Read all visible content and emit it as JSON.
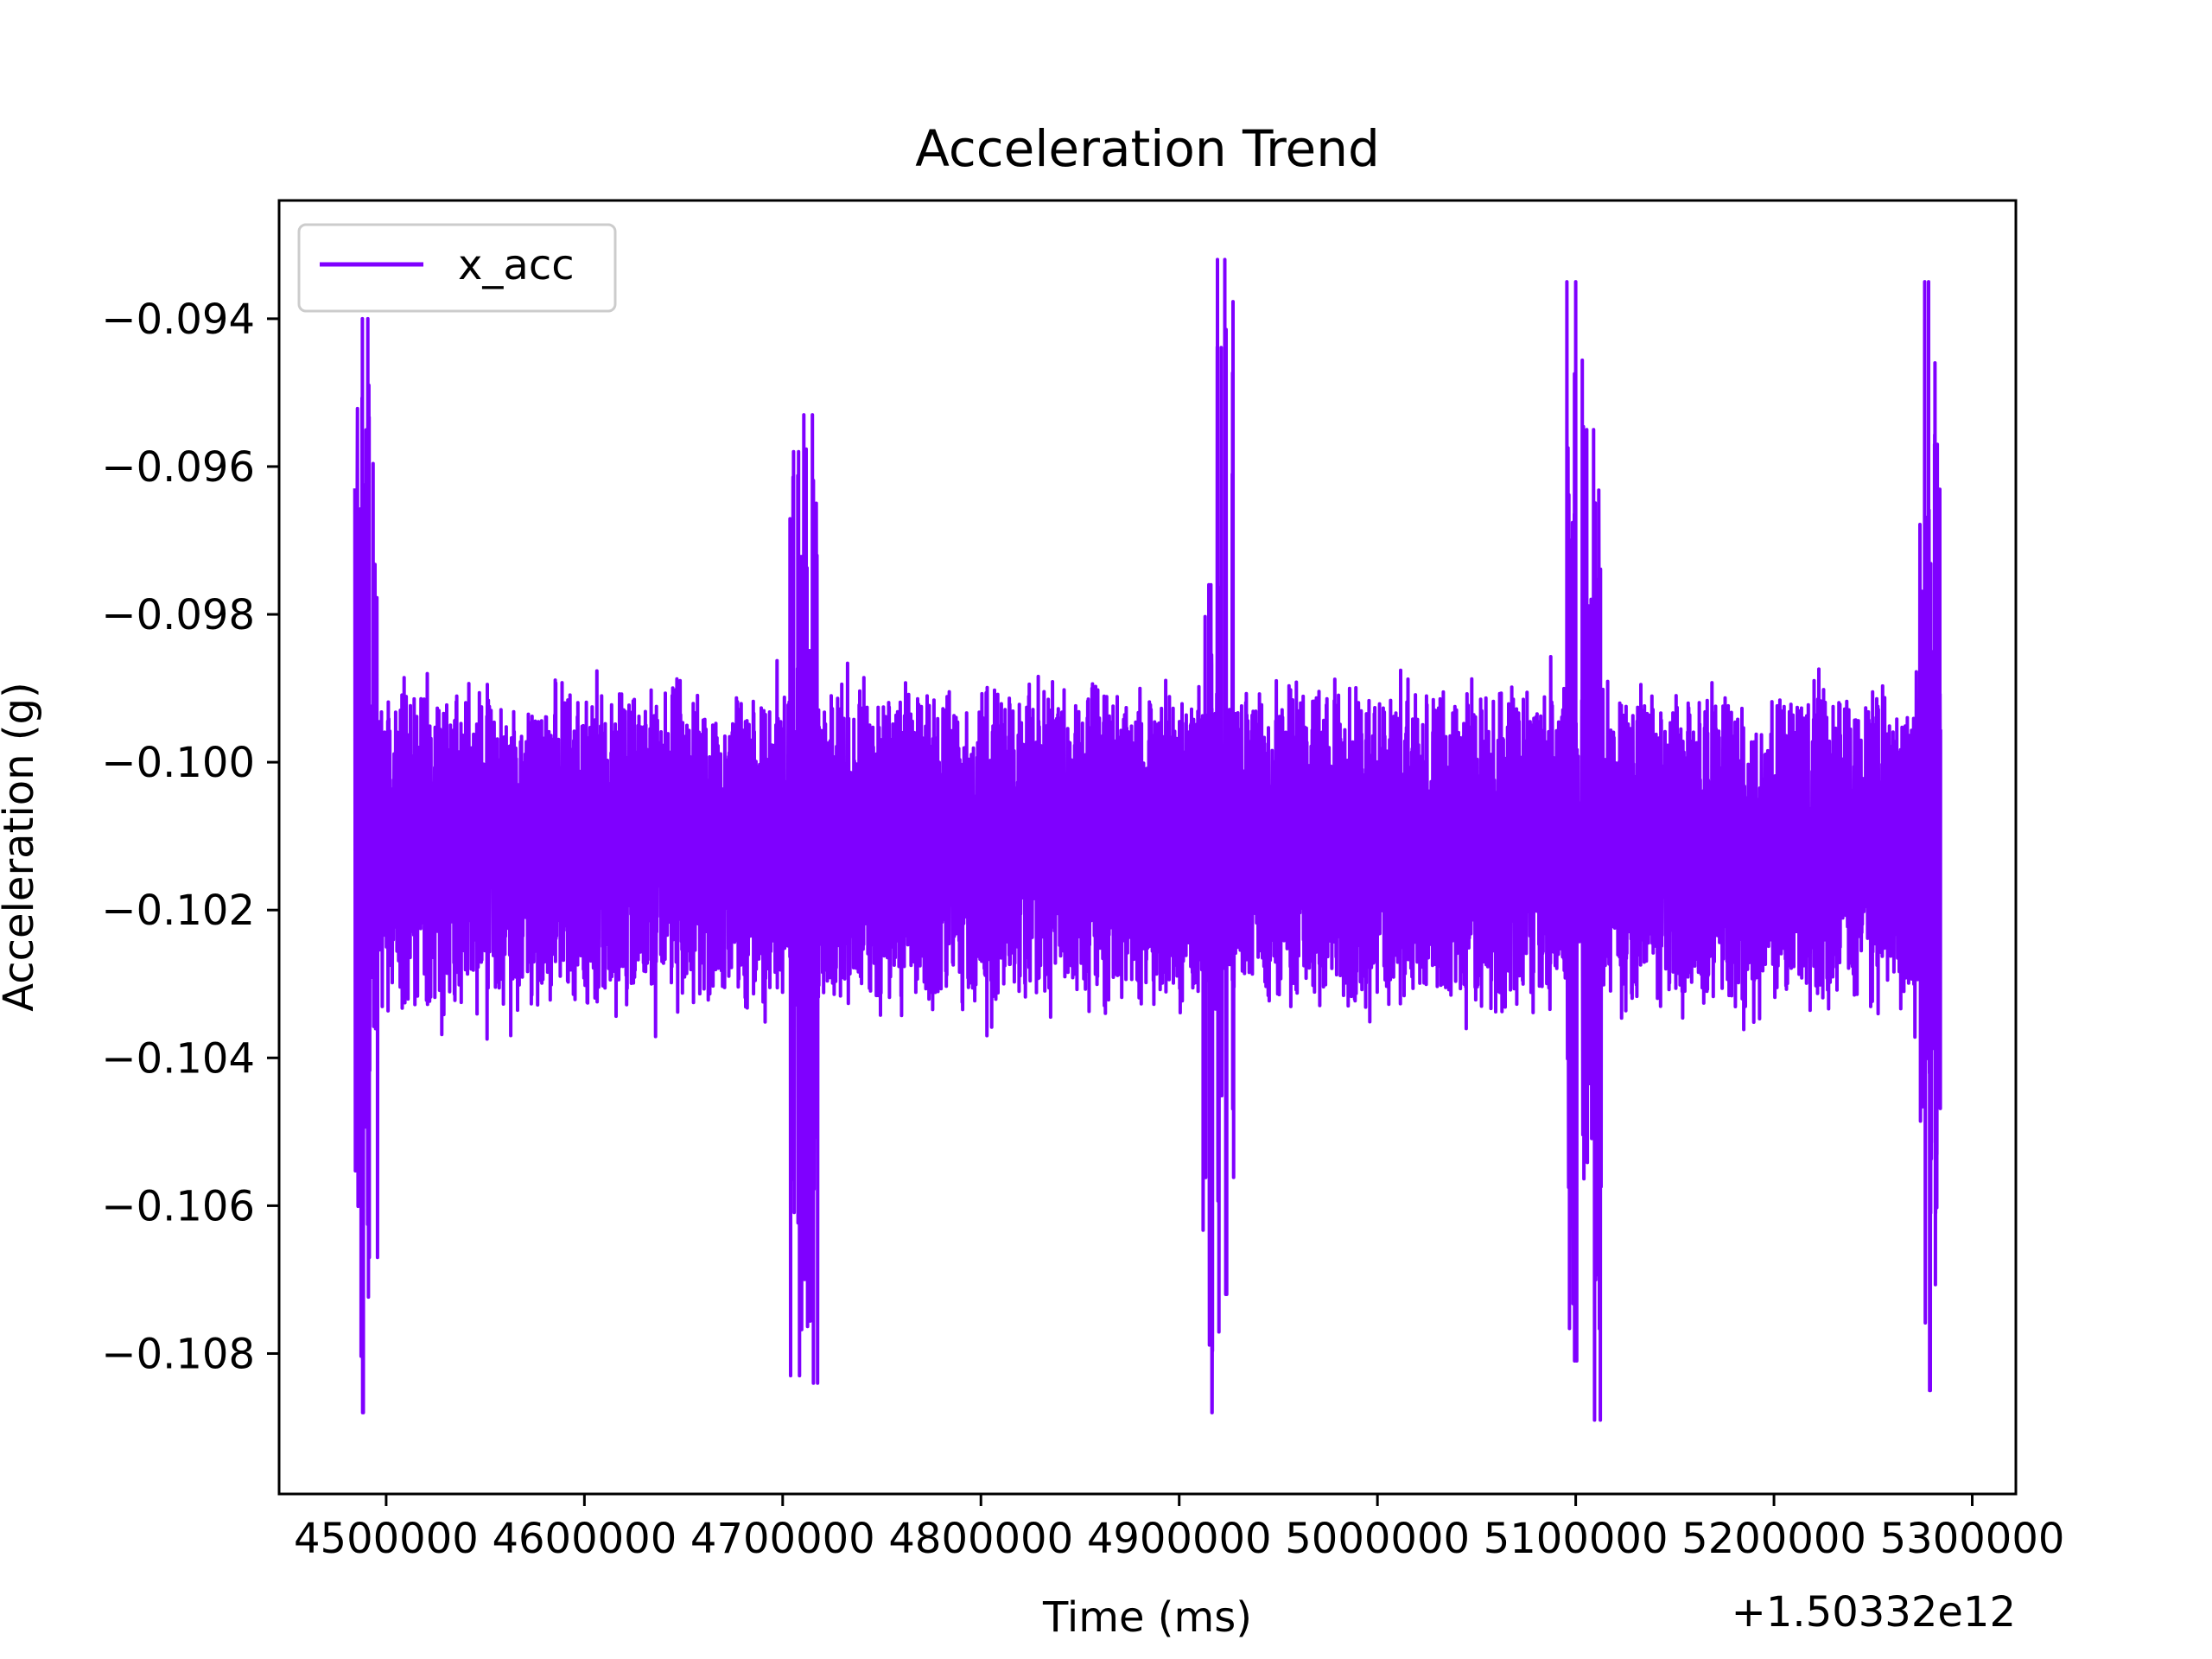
{
  "chart_data": {
    "type": "line",
    "title": "Acceleration Trend",
    "xlabel": "Time (ms)",
    "ylabel": "Acceleration (g)",
    "x_offset_label": "+1.50332e12",
    "xlim": [
      4446000,
      5322000
    ],
    "ylim": [
      -0.1099,
      -0.0924
    ],
    "x_ticks": [
      4500000,
      4600000,
      4700000,
      4800000,
      4900000,
      5000000,
      5100000,
      5200000,
      5300000
    ],
    "x_tick_labels": [
      "4500000",
      "4600000",
      "4700000",
      "4800000",
      "4900000",
      "5000000",
      "5100000",
      "5200000",
      "5300000"
    ],
    "y_ticks": [
      -0.094,
      -0.096,
      -0.098,
      -0.1,
      -0.102,
      -0.104,
      -0.106,
      -0.108
    ],
    "y_tick_labels": [
      "−0.094",
      "−0.096",
      "−0.098",
      "−0.100",
      "−0.102",
      "−0.104",
      "−0.106",
      "−0.108"
    ],
    "grid": false,
    "legend_position": "top-left",
    "series": [
      {
        "name": "x_acc",
        "color": "#7f00ff",
        "x_start": 4487000,
        "x_end": 5284000,
        "baseline_band": [
          -0.1035,
          -0.0988
        ],
        "bursts": [
          {
            "x": 4488000,
            "max": -0.094,
            "min": -0.1088
          },
          {
            "x": 4491000,
            "max": -0.0949,
            "min": -0.1067
          },
          {
            "x": 4708000,
            "max": -0.0958,
            "min": -0.1083
          },
          {
            "x": 4715000,
            "max": -0.0953,
            "min": -0.1084
          },
          {
            "x": 4916000,
            "max": -0.0976,
            "min": -0.1088
          },
          {
            "x": 4923000,
            "max": -0.0932,
            "min": -0.1072
          },
          {
            "x": 5100000,
            "max": -0.0935,
            "min": -0.1081
          },
          {
            "x": 5109000,
            "max": -0.0955,
            "min": -0.1089
          },
          {
            "x": 5278000,
            "max": -0.0935,
            "min": -0.1085
          },
          {
            "x": 5281000,
            "max": -0.0957,
            "min": -0.1061
          }
        ]
      }
    ]
  }
}
